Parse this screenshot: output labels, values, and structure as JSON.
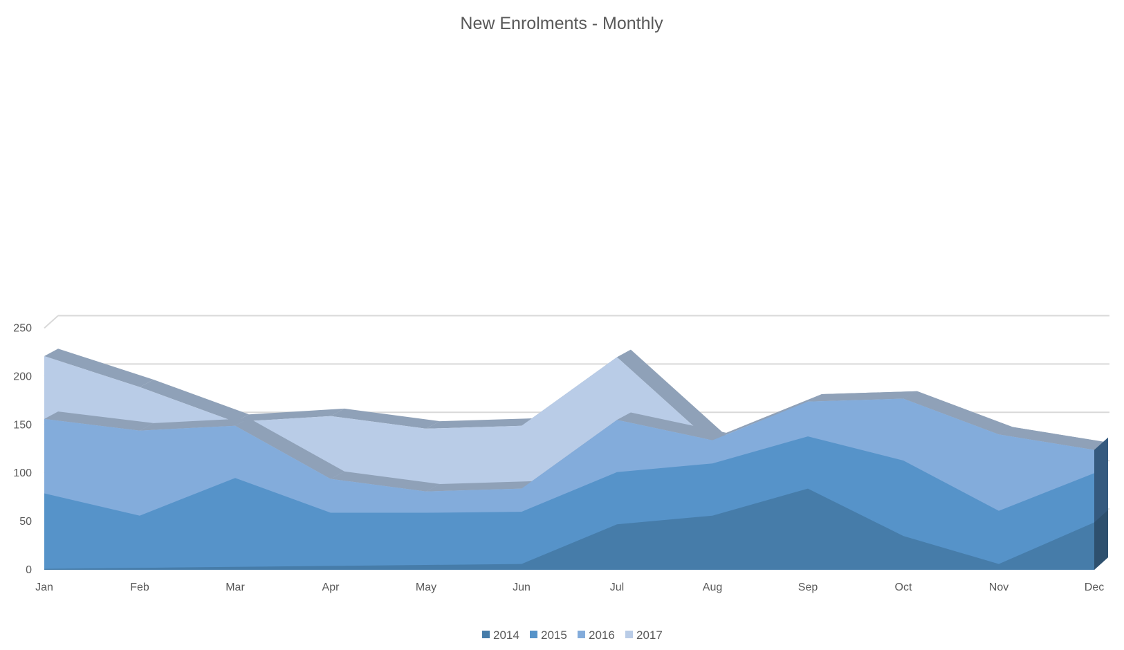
{
  "chart_data": {
    "type": "area",
    "title": "New Enrolments - Monthly",
    "xlabel": "",
    "ylabel": "",
    "categories": [
      "Jan",
      "Feb",
      "Mar",
      "Apr",
      "May",
      "Jun",
      "Jul",
      "Aug",
      "Sep",
      "Oct",
      "Nov",
      "Dec"
    ],
    "ylim": [
      0,
      250
    ],
    "yticks": [
      0,
      50,
      100,
      150,
      200,
      250
    ],
    "grid": true,
    "stacked": false,
    "three_d": true,
    "legend_position": "bottom",
    "series": [
      {
        "name": "2017",
        "color": "#b9cce7",
        "values": [
          221,
          189,
          153,
          159,
          146,
          149,
          220,
          131,
          174,
          177,
          140,
          124
        ]
      },
      {
        "name": "2016",
        "color": "#83acdb",
        "values": [
          156,
          144,
          149,
          94,
          81,
          84,
          155,
          134,
          174,
          177,
          140,
          124
        ]
      },
      {
        "name": "2015",
        "color": "#5693c9",
        "values": [
          79,
          56,
          95,
          59,
          59,
          60,
          101,
          110,
          138,
          113,
          61,
          100
        ]
      },
      {
        "name": "2014",
        "color": "#467ca9",
        "values": [
          1,
          2,
          3,
          4,
          5,
          6,
          47,
          56,
          84,
          35,
          6,
          49
        ]
      }
    ],
    "legend_order": [
      "2014",
      "2015",
      "2016",
      "2017"
    ],
    "top_edge_color": "#8fa1b8",
    "gridline_color": "#d9d9d9",
    "side_dark_color": "#2e506e",
    "side_mid_color": "#355a7f"
  }
}
